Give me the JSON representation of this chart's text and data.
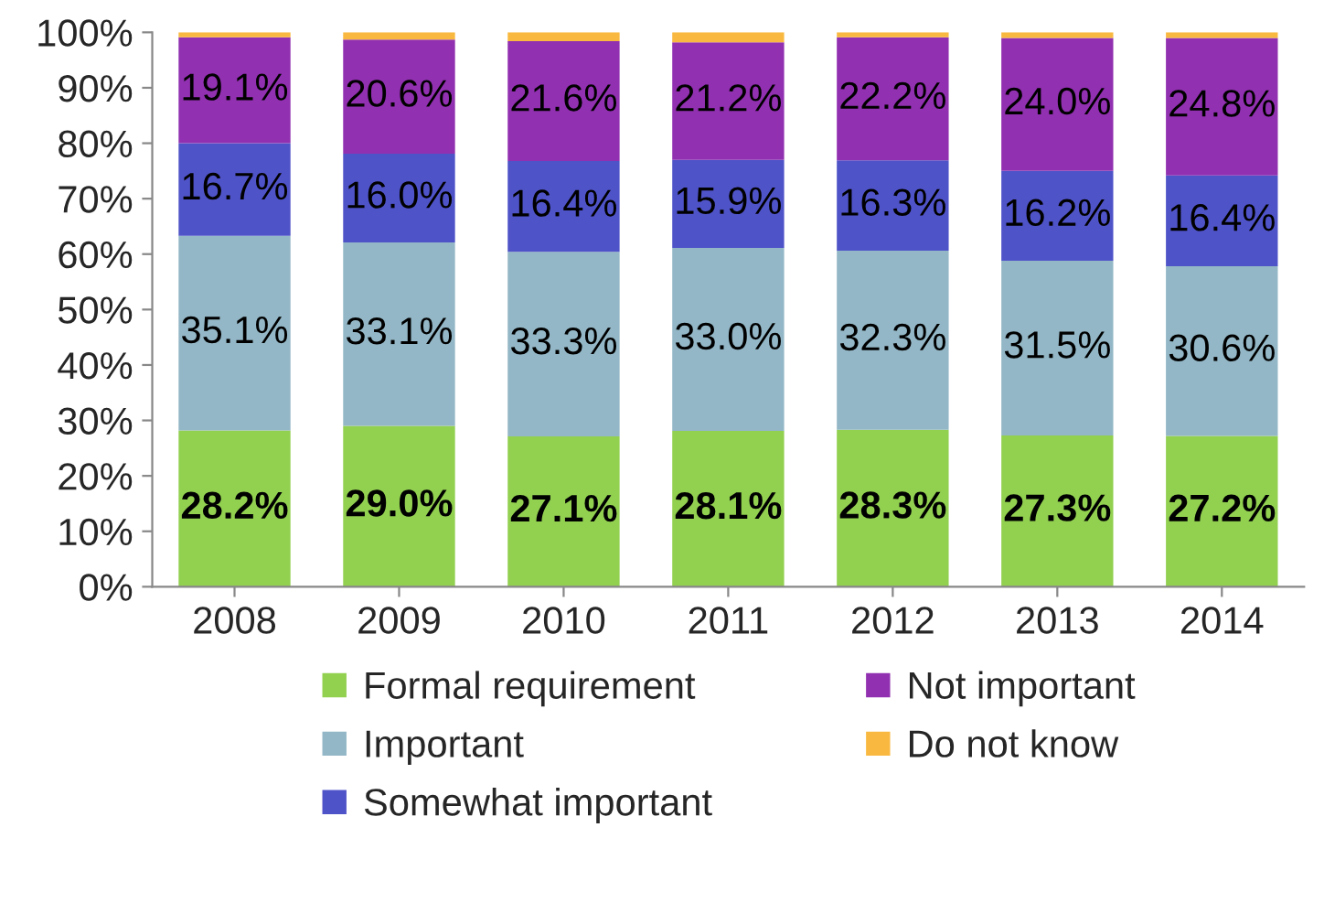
{
  "chart_data": {
    "type": "bar",
    "stacked": true,
    "categories": [
      "2008",
      "2009",
      "2010",
      "2011",
      "2012",
      "2013",
      "2014"
    ],
    "series": [
      {
        "name": "Formal requirement",
        "color": "#92d050",
        "values": [
          28.2,
          29.0,
          27.1,
          28.1,
          28.3,
          27.3,
          27.2
        ],
        "value_labels": [
          "28.2%",
          "29.0%",
          "27.1%",
          "28.1%",
          "28.3%",
          "27.3%",
          "27.2%"
        ]
      },
      {
        "name": "Important",
        "color": "#93b7c6",
        "values": [
          35.1,
          33.1,
          33.3,
          33.0,
          32.3,
          31.5,
          30.6
        ],
        "value_labels": [
          "35.1%",
          "33.1%",
          "33.3%",
          "33.0%",
          "32.3%",
          "31.5%",
          "30.6%"
        ]
      },
      {
        "name": "Somewhat important",
        "color": "#4f53c8",
        "values": [
          16.7,
          16.0,
          16.4,
          15.9,
          16.3,
          16.2,
          16.4
        ],
        "value_labels": [
          "16.7%",
          "16.0%",
          "16.4%",
          "15.9%",
          "16.3%",
          "16.2%",
          "16.4%"
        ]
      },
      {
        "name": "Not important",
        "color": "#9130b0",
        "values": [
          19.1,
          20.6,
          21.6,
          21.2,
          22.2,
          24.0,
          24.8
        ],
        "value_labels": [
          "19.1%",
          "20.6%",
          "21.6%",
          "21.2%",
          "22.2%",
          "24.0%",
          "24.8%"
        ]
      },
      {
        "name": "Do not know",
        "color": "#f9b940",
        "values": [
          0.9,
          1.3,
          1.6,
          1.8,
          0.9,
          1.0,
          1.0
        ]
      }
    ],
    "ylim": [
      0,
      100
    ],
    "yticks": [
      {
        "value": 0,
        "label": "0%"
      },
      {
        "value": 10,
        "label": "10%"
      },
      {
        "value": 20,
        "label": "20%"
      },
      {
        "value": 30,
        "label": "30%"
      },
      {
        "value": 40,
        "label": "40%"
      },
      {
        "value": 50,
        "label": "50%"
      },
      {
        "value": 60,
        "label": "60%"
      },
      {
        "value": 70,
        "label": "70%"
      },
      {
        "value": 80,
        "label": "80%"
      },
      {
        "value": 90,
        "label": "90%"
      },
      {
        "value": 100,
        "label": "100%"
      }
    ],
    "grid": false,
    "legend": "bottom"
  }
}
